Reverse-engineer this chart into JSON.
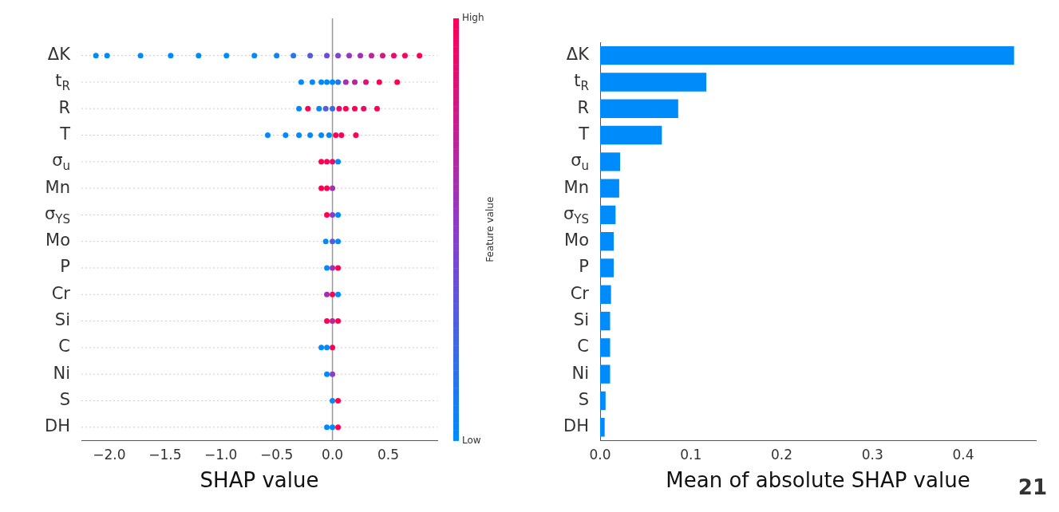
{
  "chart_data": [
    {
      "type": "scatter",
      "orientation": "horizontal",
      "xlabel": "SHAP value",
      "clabel": "Feature value",
      "clim": [
        0,
        1
      ],
      "cticks": [
        {
          "value": 0,
          "label": "Low"
        },
        {
          "value": 1,
          "label": "High"
        }
      ],
      "categories": [
        "ΔK",
        "t$_{R}$",
        "R",
        "T",
        "σ$_{u}$",
        "Mn",
        "σ$_{YS}$",
        "Mo",
        "P",
        "Cr",
        "Si",
        "C",
        "Ni",
        "S",
        "DH"
      ],
      "xlim": [
        -2.25,
        0.94
      ],
      "xticks": [
        {
          "value": -2,
          "label": "−2.0"
        },
        {
          "value": -1.5,
          "label": "−1.5"
        },
        {
          "value": -1,
          "label": "−1.0"
        },
        {
          "value": -0.5,
          "label": "−0.5"
        },
        {
          "value": 0,
          "label": "0.0"
        },
        {
          "value": 0.5,
          "label": "0.5"
        }
      ],
      "grid": "y",
      "ref_lines": [
        {
          "axis": "x",
          "value": 0
        }
      ],
      "series": [
        {
          "x": [
            "ΔK",
            "ΔK",
            "ΔK",
            "ΔK",
            "ΔK",
            "ΔK",
            "ΔK",
            "ΔK",
            "ΔK",
            "ΔK",
            "ΔK",
            "ΔK",
            "ΔK",
            "ΔK",
            "ΔK",
            "ΔK",
            "ΔK",
            "ΔK",
            "ΔK"
          ],
          "values": [
            -2.12,
            -2.02,
            -1.72,
            -1.45,
            -1.2,
            -0.95,
            -0.7,
            -0.5,
            -0.35,
            -0.2,
            -0.05,
            0.05,
            0.15,
            0.25,
            0.35,
            0.45,
            0.55,
            0.65,
            0.78
          ],
          "colors": [
            "#008afb",
            "#008afb",
            "#008afb",
            "#008afb",
            "#008afb",
            "#008afb",
            "#008afb",
            "#0e82f6",
            "#2a73ec",
            "#545bdc",
            "#704cd2",
            "#7e44cd",
            "#9836bc",
            "#a330b0",
            "#ba2499",
            "#d11881",
            "#e80c6a",
            "#f4065e",
            "#ff0052"
          ]
        },
        {
          "x": [
            "t$_{R}$",
            "t$_{R}$",
            "t$_{R}$",
            "t$_{R}$",
            "t$_{R}$",
            "t$_{R}$",
            "t$_{R}$",
            "t$_{R}$",
            "t$_{R}$",
            "t$_{R}$",
            "t$_{R}$"
          ],
          "values": [
            -0.28,
            -0.18,
            -0.1,
            -0.05,
            0,
            0.05,
            0.12,
            0.2,
            0.3,
            0.42,
            0.58
          ],
          "colors": [
            "#008afb",
            "#008afb",
            "#008afb",
            "#008afb",
            "#008afb",
            "#1c7af1",
            "#a330b0",
            "#ba2499",
            "#dd1275",
            "#ff0052",
            "#ff0052"
          ]
        },
        {
          "x": [
            "R",
            "R",
            "R",
            "R",
            "R",
            "R",
            "R",
            "R",
            "R",
            "R"
          ],
          "values": [
            -0.3,
            -0.22,
            -0.12,
            -0.06,
            0,
            0.06,
            0.12,
            0.2,
            0.28,
            0.4
          ],
          "colors": [
            "#008afb",
            "#ff0052",
            "#008afb",
            "#545bdc",
            "#386be7",
            "#e80c6a",
            "#ff0052",
            "#ff0052",
            "#e80c6a",
            "#ff0052"
          ]
        },
        {
          "x": [
            "T",
            "T",
            "T",
            "T",
            "T",
            "T",
            "T",
            "T",
            "T"
          ],
          "values": [
            -0.58,
            -0.42,
            -0.3,
            -0.2,
            -0.1,
            -0.03,
            0.03,
            0.08,
            0.21
          ],
          "colors": [
            "#008afb",
            "#008afb",
            "#008afb",
            "#008afb",
            "#008afb",
            "#008afb",
            "#ff0052",
            "#ff0052",
            "#ff0052"
          ]
        },
        {
          "x": [
            "σ$_{u}$",
            "σ$_{u}$",
            "σ$_{u}$",
            "σ$_{u}$"
          ],
          "values": [
            -0.1,
            -0.05,
            0,
            0.05
          ],
          "colors": [
            "#ff0052",
            "#ff0052",
            "#e80c6a",
            "#008afb"
          ]
        },
        {
          "x": [
            "Mn",
            "Mn",
            "Mn"
          ],
          "values": [
            -0.1,
            -0.05,
            0
          ],
          "colors": [
            "#ff0052",
            "#ff0052",
            "#a330b0"
          ]
        },
        {
          "x": [
            "σ$_{YS}$",
            "σ$_{YS}$",
            "σ$_{YS}$"
          ],
          "values": [
            -0.05,
            0,
            0.05
          ],
          "colors": [
            "#ff0052",
            "#8c3cc8",
            "#008afb"
          ]
        },
        {
          "x": [
            "Mo",
            "Mo",
            "Mo"
          ],
          "values": [
            -0.06,
            0,
            0.05
          ],
          "colors": [
            "#008afb",
            "#545bdc",
            "#008afb"
          ]
        },
        {
          "x": [
            "P",
            "P",
            "P"
          ],
          "values": [
            -0.05,
            0,
            0.05
          ],
          "colors": [
            "#008afb",
            "#a330b0",
            "#ff0052"
          ]
        },
        {
          "x": [
            "Cr",
            "Cr",
            "Cr"
          ],
          "values": [
            -0.05,
            0,
            0.05
          ],
          "colors": [
            "#a330b0",
            "#ff0052",
            "#008afb"
          ]
        },
        {
          "x": [
            "Si",
            "Si",
            "Si"
          ],
          "values": [
            -0.05,
            0,
            0.05
          ],
          "colors": [
            "#ff0052",
            "#ba2499",
            "#ff0052"
          ]
        },
        {
          "x": [
            "C",
            "C",
            "C"
          ],
          "values": [
            -0.1,
            -0.05,
            0
          ],
          "colors": [
            "#008afb",
            "#008afb",
            "#ff0052"
          ]
        },
        {
          "x": [
            "Ni",
            "Ni"
          ],
          "values": [
            -0.05,
            0
          ],
          "colors": [
            "#008afb",
            "#8c3cc8"
          ]
        },
        {
          "x": [
            "S",
            "S"
          ],
          "values": [
            0,
            0.05
          ],
          "colors": [
            "#008afb",
            "#ff0052"
          ]
        },
        {
          "x": [
            "DH",
            "DH",
            "DH"
          ],
          "values": [
            -0.05,
            0,
            0.05
          ],
          "colors": [
            "#008afb",
            "#008afb",
            "#ff0052"
          ]
        }
      ]
    },
    {
      "type": "bar",
      "orientation": "horizontal",
      "xlabel": "Mean of absolute SHAP value",
      "color": "#008bfb",
      "categories": [
        "ΔK",
        "t$_{R}$",
        "R",
        "T",
        "σ$_{u}$",
        "Mn",
        "σ$_{YS}$",
        "Mo",
        "P",
        "Cr",
        "Si",
        "C",
        "Ni",
        "S",
        "DH"
      ],
      "values": [
        0.456,
        0.117,
        0.086,
        0.068,
        0.022,
        0.021,
        0.017,
        0.015,
        0.015,
        0.012,
        0.011,
        0.011,
        0.011,
        0.006,
        0.005
      ],
      "xlim": [
        0,
        0.48
      ],
      "xticks": [
        {
          "value": 0,
          "label": "0.0"
        },
        {
          "value": 0.1,
          "label": "0.1"
        },
        {
          "value": 0.2,
          "label": "0.2"
        },
        {
          "value": 0.3,
          "label": "0.3"
        },
        {
          "value": 0.4,
          "label": "0.4"
        }
      ],
      "annotations": [
        "21"
      ]
    }
  ]
}
